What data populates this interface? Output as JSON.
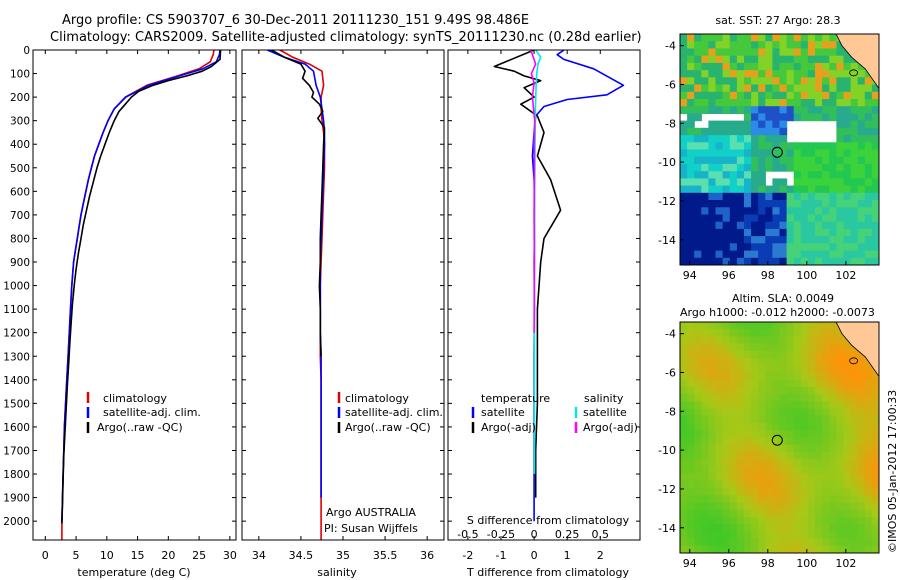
{
  "header": {
    "line1": "Argo profile: CS 5903707_6 30-Dec-2011 20111230_151 9.49S 98.486E",
    "line2": "Climatology: CARS2009. Satellite-adjusted climatology: synTS_20111230.nc (0.28d earlier)"
  },
  "chart_data": [
    {
      "type": "line",
      "xlabel": "temperature (deg C)",
      "ylabel": "",
      "xlim": [
        -2,
        31
      ],
      "ylim": [
        2080,
        0
      ],
      "xticks": [
        0,
        5,
        10,
        15,
        20,
        25,
        30
      ],
      "yticks": [
        0,
        100,
        200,
        300,
        400,
        500,
        600,
        700,
        800,
        900,
        1000,
        1100,
        1200,
        1300,
        1400,
        1500,
        1600,
        1700,
        1800,
        1900,
        2000
      ],
      "legend": [
        "climatology",
        "satellite-adj. clim.",
        "Argo(..raw -QC)"
      ],
      "series": [
        {
          "name": "climatology",
          "color": "#e00000",
          "x": [
            27.4,
            27.3,
            26.8,
            25.0,
            21.5,
            16.5,
            13.0,
            11.2,
            10.2,
            9.4,
            8.7,
            8.0,
            7.5,
            7.0,
            6.6,
            6.2,
            5.8,
            5.5,
            5.2,
            4.9,
            4.6,
            4.3,
            4.1,
            3.9,
            3.7,
            3.5,
            3.3,
            3.1,
            3.0,
            2.9,
            2.8,
            2.7,
            2.7
          ],
          "y": [
            0,
            20,
            50,
            80,
            110,
            150,
            200,
            250,
            300,
            350,
            400,
            450,
            500,
            550,
            600,
            650,
            700,
            750,
            800,
            850,
            900,
            1000,
            1100,
            1200,
            1300,
            1400,
            1500,
            1600,
            1700,
            1800,
            1900,
            2000,
            2080
          ]
        },
        {
          "name": "satellite-adj. clim.",
          "color": "#0000ff",
          "x": [
            28.4,
            28.3,
            27.8,
            25.6,
            21.8,
            16.8,
            13.1,
            11.2,
            10.2,
            9.4,
            8.7,
            8.0,
            7.5,
            7.0,
            6.6,
            6.2,
            5.8,
            5.5,
            5.2,
            4.9,
            4.6,
            4.3,
            4.1,
            3.9,
            3.7,
            3.5,
            3.3,
            3.1,
            3.0,
            2.9,
            2.8,
            2.7
          ],
          "y": [
            0,
            20,
            50,
            80,
            110,
            150,
            200,
            250,
            300,
            350,
            400,
            450,
            500,
            550,
            600,
            650,
            700,
            750,
            800,
            850,
            900,
            1000,
            1100,
            1200,
            1300,
            1400,
            1500,
            1600,
            1700,
            1800,
            1900,
            2000
          ]
        },
        {
          "name": "Argo(..raw -QC)",
          "color": "#000000",
          "x": [
            28.5,
            28.4,
            27.0,
            25.5,
            23.0,
            20.0,
            17.5,
            15.2,
            14.0,
            13.0,
            12.0,
            11.2,
            10.4,
            9.7,
            9.0,
            8.4,
            7.8,
            7.2,
            6.7,
            6.2,
            5.8,
            5.4,
            5.0,
            4.7,
            4.4,
            4.2,
            4.0,
            3.8,
            3.6,
            3.4,
            3.2,
            3.0,
            2.9,
            2.8,
            2.7
          ],
          "y": [
            0,
            40,
            70,
            90,
            110,
            130,
            150,
            175,
            200,
            230,
            260,
            300,
            350,
            400,
            450,
            500,
            560,
            620,
            680,
            740,
            800,
            860,
            930,
            1000,
            1080,
            1160,
            1240,
            1330,
            1420,
            1520,
            1620,
            1720,
            1820,
            1920,
            2010
          ]
        }
      ]
    },
    {
      "type": "line",
      "xlabel": "salinity",
      "ylabel": "",
      "xlim": [
        33.8,
        36.2
      ],
      "ylim": [
        2080,
        0
      ],
      "xticks": [
        34,
        34.5,
        35,
        35.5,
        36
      ],
      "legend": [
        "climatology",
        "satellite-adj. clim.",
        "Argo(..raw -QC)"
      ],
      "annotations": [
        "Argo AUSTRALIA",
        "PI: Susan Wijffels"
      ],
      "series": [
        {
          "name": "climatology",
          "color": "#e00000",
          "x": [
            34.25,
            34.4,
            34.6,
            34.75,
            34.77,
            34.74,
            34.74,
            34.75,
            34.77,
            34.78,
            34.78,
            34.77,
            34.76,
            34.75,
            34.74,
            34.73,
            34.73,
            34.73,
            34.73,
            34.74,
            34.74,
            34.74,
            34.74,
            34.74,
            34.74,
            34.74
          ],
          "y": [
            0,
            30,
            60,
            90,
            150,
            200,
            250,
            300,
            350,
            400,
            500,
            600,
            700,
            800,
            900,
            1000,
            1100,
            1200,
            1300,
            1400,
            1500,
            1600,
            1700,
            1800,
            1900,
            2080
          ]
        },
        {
          "name": "satellite-adj. clim.",
          "color": "#0000ff",
          "x": [
            34.1,
            34.3,
            34.55,
            34.65,
            34.68,
            34.73,
            34.75,
            34.77,
            34.78,
            34.78,
            34.77,
            34.76,
            34.75,
            34.74,
            34.73,
            34.73,
            34.73,
            34.73,
            34.74,
            34.74,
            34.74,
            34.74,
            34.74,
            34.74,
            34.74
          ],
          "y": [
            0,
            30,
            60,
            90,
            150,
            200,
            250,
            300,
            350,
            400,
            500,
            600,
            700,
            800,
            900,
            1000,
            1100,
            1200,
            1300,
            1400,
            1500,
            1600,
            1700,
            1800,
            1900
          ]
        },
        {
          "name": "Argo(..raw -QC)",
          "color": "#000000",
          "x": [
            34.15,
            34.3,
            34.5,
            34.55,
            34.52,
            34.6,
            34.65,
            34.63,
            34.72,
            34.76,
            34.7,
            34.78,
            34.77,
            34.76,
            34.75,
            34.74,
            34.73,
            34.73,
            34.72,
            34.73,
            34.73,
            34.74
          ],
          "y": [
            0,
            30,
            60,
            90,
            120,
            150,
            180,
            200,
            230,
            260,
            290,
            330,
            400,
            500,
            600,
            700,
            800,
            900,
            1000,
            1100,
            1200,
            1300
          ]
        }
      ]
    },
    {
      "type": "line",
      "xlabel": "T difference from climatology",
      "xlabel_top": "S difference from climatology",
      "ylabel": "",
      "xlim": [
        -2.6,
        3.2
      ],
      "ylim": [
        2080,
        0
      ],
      "xticks": [
        -2,
        -1,
        0,
        1,
        2
      ],
      "xticks_s": [
        "-0.5",
        "-0.25",
        "0",
        "0.25",
        "0.5"
      ],
      "legend_t_title": "temperature",
      "legend_s_title": "salinity",
      "legend": [
        "satellite",
        "Argo(-adj)",
        "satellite",
        "Argo(-adj)"
      ],
      "series": [
        {
          "name": "satellite",
          "color": "#0000ff",
          "x": [
            0.9,
            0.7,
            0.9,
            1.8,
            2.7,
            2.2,
            1.0,
            0.3,
            0.05,
            0.0,
            -0.05,
            0.0,
            0.02,
            0.0,
            0.01,
            0.0,
            0.0,
            0.0,
            0.0,
            0.0
          ],
          "y": [
            0,
            20,
            40,
            80,
            150,
            190,
            210,
            240,
            280,
            350,
            450,
            550,
            700,
            900,
            1100,
            1300,
            1500,
            1700,
            1900,
            2000
          ]
        },
        {
          "name": "Argo(-adj)",
          "color": "#000000",
          "x": [
            0.0,
            -1.2,
            -0.6,
            -0.3,
            0.2,
            -0.3,
            0.0,
            -0.4,
            0.1,
            0.3,
            0.1,
            0.5,
            0.8,
            0.3,
            0.2,
            0.1,
            0.1,
            0.1,
            0.05,
            0.05
          ],
          "y": [
            0,
            70,
            90,
            110,
            130,
            160,
            200,
            230,
            280,
            350,
            450,
            550,
            680,
            800,
            900,
            1100,
            1300,
            1500,
            1700,
            1900
          ]
        },
        {
          "name": "satellite",
          "color": "#00e8e8",
          "x": [
            0.05,
            0.2,
            0.12,
            0.08,
            0.06,
            0.04,
            0.03,
            0.02,
            0.02,
            0.01,
            0.01,
            0.01,
            0.01
          ],
          "y": [
            0,
            30,
            60,
            100,
            150,
            250,
            400,
            600,
            800,
            1000,
            1200,
            1400,
            1800
          ]
        },
        {
          "name": "Argo(-adj)",
          "color": "#ff00ff",
          "x": [
            -0.1,
            0.05,
            -0.08,
            0.0,
            -0.05,
            0.02,
            0.0,
            0.01,
            0.0,
            0.01,
            0.0
          ],
          "y": [
            0,
            60,
            100,
            140,
            200,
            300,
            400,
            500,
            700,
            900,
            1200
          ]
        }
      ]
    },
    {
      "type": "heatmap",
      "title": "sat. SST: 27 Argo: 28.3",
      "xlim": [
        93.5,
        103.7
      ],
      "ylim": [
        -15.3,
        -3.4
      ],
      "xticks": [
        94,
        96,
        98,
        100,
        102
      ],
      "yticks": [
        -4,
        -6,
        -8,
        -10,
        -12,
        -14
      ],
      "marker": {
        "lon": 98.486,
        "lat": -9.49
      }
    },
    {
      "type": "heatmap",
      "title": "Altim. SLA: 0.0049",
      "subtitle": "Argo h1000: -0.012 h2000: -0.0073",
      "xlim": [
        93.5,
        103.7
      ],
      "ylim": [
        -15.3,
        -3.4
      ],
      "xticks": [
        94,
        96,
        98,
        100,
        102
      ],
      "yticks": [
        -4,
        -6,
        -8,
        -10,
        -12,
        -14
      ],
      "marker": {
        "lon": 98.486,
        "lat": -9.49
      }
    }
  ],
  "watermark": "©IMOS 05-Jan-2012 17:00:33"
}
